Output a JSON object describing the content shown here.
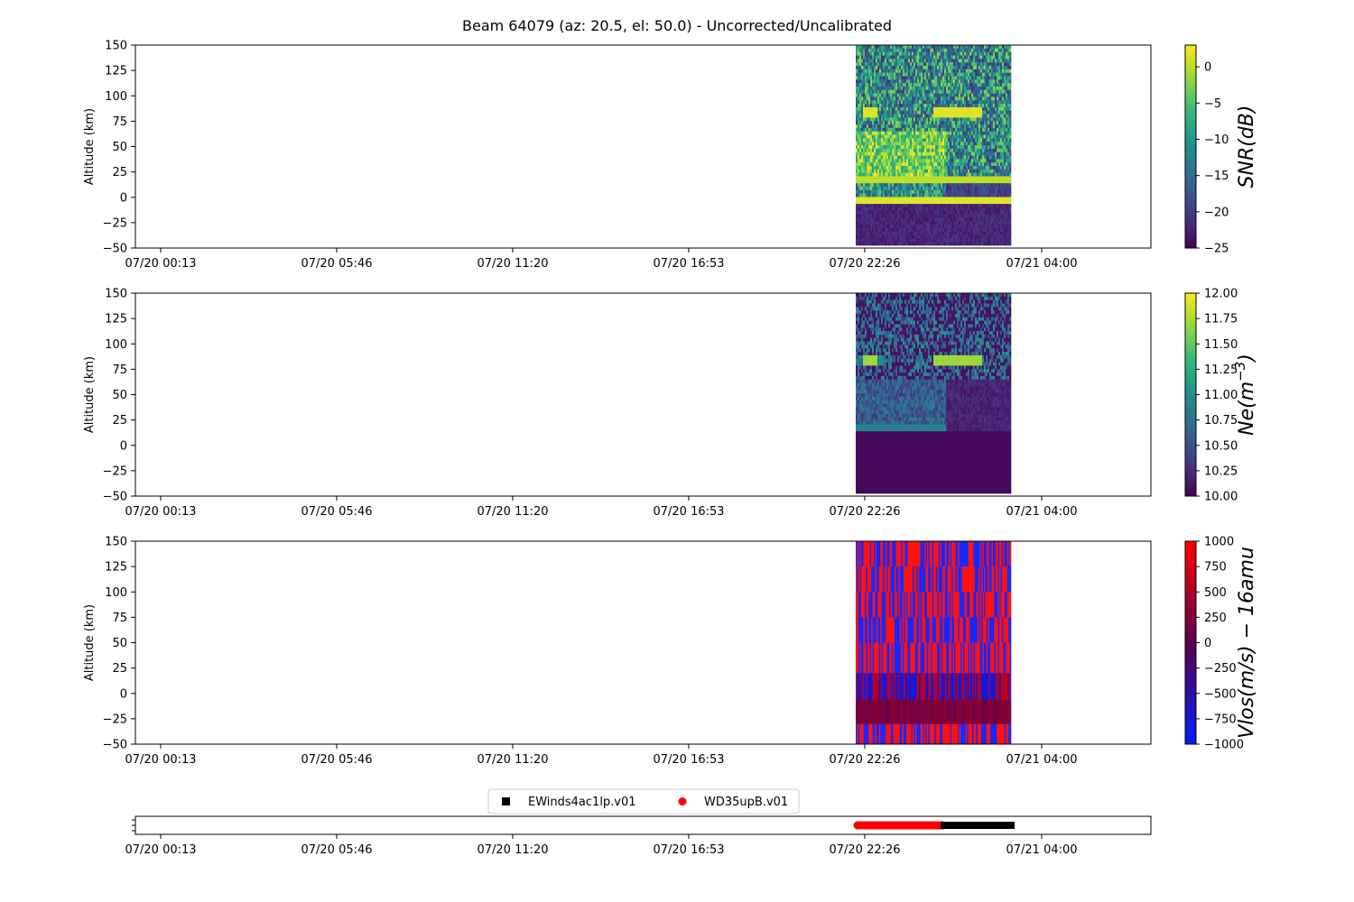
{
  "figure": {
    "title": "Beam 64079 (az: 20.5, el: 50.0) - Uncorrected/Uncalibrated"
  },
  "chart_data": [
    {
      "type": "heatmap",
      "ylabel": "Altitude (km)",
      "xlim": [
        0,
        1
      ],
      "ylim": [
        -50,
        150
      ],
      "x_tick_labels": [
        "07/20 00:13",
        "07/20 05:46",
        "07/20 11:20",
        "07/20 16:53",
        "07/20 22:26",
        "07/21 04:00"
      ],
      "y_ticks": [
        -50,
        -25,
        0,
        25,
        50,
        75,
        100,
        125,
        150
      ],
      "colorbar": {
        "label": "SNR(dB)",
        "range": [
          -25,
          3
        ],
        "ticks": [
          -25,
          -20,
          -15,
          -10,
          -5,
          0
        ],
        "colormap": "viridis"
      }
    },
    {
      "type": "heatmap",
      "ylabel": "Altitude (km)",
      "ylim": [
        -50,
        150
      ],
      "x_tick_labels": [
        "07/20 00:13",
        "07/20 05:46",
        "07/20 11:20",
        "07/20 16:53",
        "07/20 22:26",
        "07/21 04:00"
      ],
      "y_ticks": [
        -50,
        -25,
        0,
        25,
        50,
        75,
        100,
        125,
        150
      ],
      "colorbar": {
        "label": "Ne(m",
        "label_sup": "−3",
        "label_end": ")",
        "range": [
          10.0,
          12.0
        ],
        "ticks": [
          "10.00",
          "10.25",
          "10.50",
          "10.75",
          "11.00",
          "11.25",
          "11.50",
          "11.75",
          "12.00"
        ],
        "colormap": "viridis"
      }
    },
    {
      "type": "heatmap",
      "ylabel": "Altitude (km)",
      "ylim": [
        -50,
        150
      ],
      "x_tick_labels": [
        "07/20 00:13",
        "07/20 05:46",
        "07/20 11:20",
        "07/20 16:53",
        "07/20 22:26",
        "07/21 04:00"
      ],
      "y_ticks": [
        -50,
        -25,
        0,
        25,
        50,
        75,
        100,
        125,
        150
      ],
      "colorbar": {
        "label": "Vlos(m/s) − 16amu",
        "range": [
          -1000,
          1000
        ],
        "ticks": [
          -1000,
          -750,
          -500,
          -250,
          0,
          250,
          500,
          750,
          1000
        ],
        "colormap": "blue-red"
      }
    },
    {
      "type": "scatter",
      "x_tick_labels": [
        "07/20 00:13",
        "07/20 05:46",
        "07/20 11:20",
        "07/20 16:53",
        "07/20 22:26",
        "07/21 04:00"
      ],
      "legend_placement": "top-center",
      "series": [
        {
          "name": "EWinds4ac1lp.v01",
          "color": "#000000",
          "marker": "square"
        },
        {
          "name": "WD35upB.v01",
          "color": "#ff0000",
          "marker": "circle"
        }
      ]
    }
  ]
}
